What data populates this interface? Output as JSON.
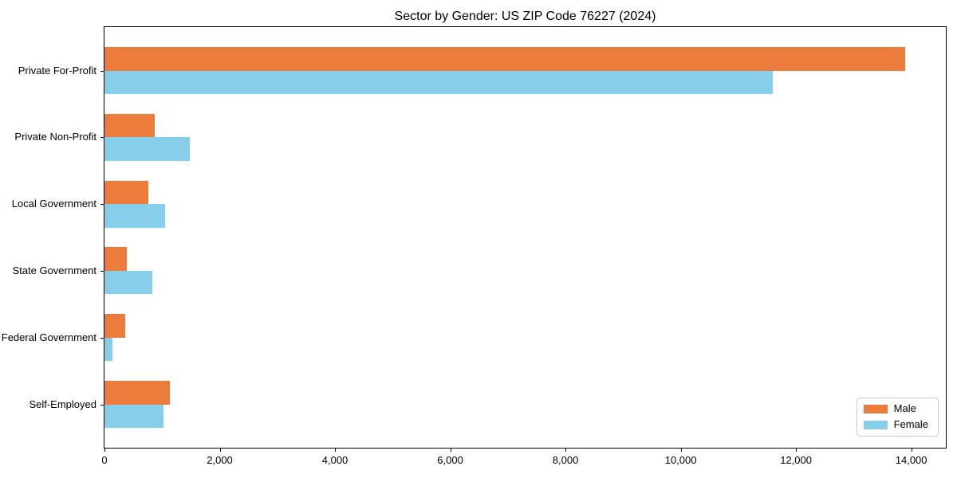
{
  "chart_data": {
    "type": "bar",
    "orientation": "horizontal",
    "title": "Sector by Gender: US ZIP Code 76227 (2024)",
    "categories": [
      "Private For-Profit",
      "Private Non-Profit",
      "Local Government",
      "State Government",
      "Federal Government",
      "Self-Employed"
    ],
    "series": [
      {
        "name": "Male",
        "color": "#EB7C3B",
        "values": [
          13900,
          870,
          760,
          390,
          360,
          1130
        ]
      },
      {
        "name": "Female",
        "color": "#87CEEB",
        "values": [
          11600,
          1480,
          1050,
          830,
          140,
          1020
        ]
      }
    ],
    "xlim": [
      0,
      14600
    ],
    "x_ticks": [
      0,
      2000,
      4000,
      6000,
      8000,
      10000,
      12000,
      14000
    ],
    "x_tick_labels": [
      "0",
      "2,000",
      "4,000",
      "6,000",
      "8,000",
      "10,000",
      "12,000",
      "14,000"
    ],
    "legend_position": "lower right",
    "grid": false,
    "axis_color": "#000000",
    "background_color": "#ffffff"
  }
}
